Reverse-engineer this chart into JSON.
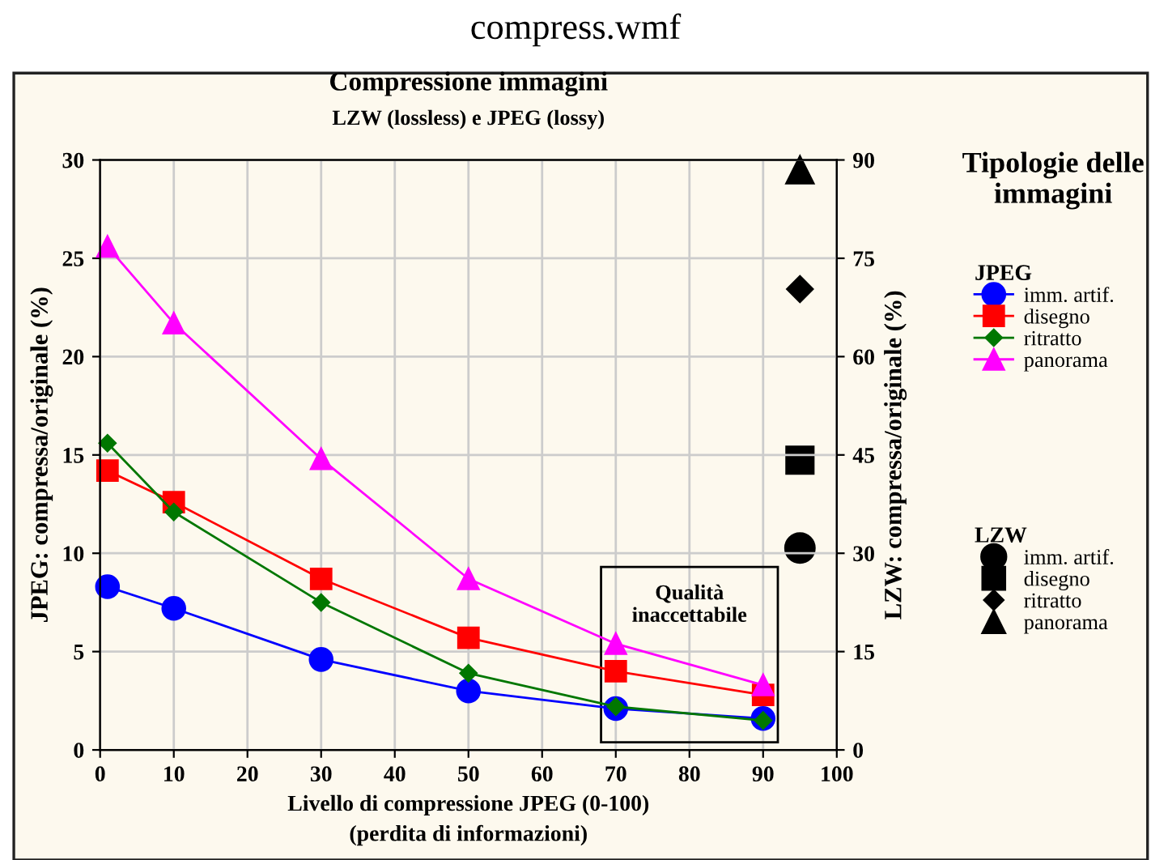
{
  "chart_data": {
    "type": "line",
    "title": "Compressione immagini",
    "subtitle": "LZW (lossless) e JPEG (lossy)",
    "xlabel": "Livello di compressione JPEG (0-100)\n(perdita di informazioni)",
    "ylabel": "JPEG: compressa/originale (%)",
    "y2label": "LZW: compressa/originale (%)",
    "legend_title": "Tipologie delle\nimmagini",
    "annotations": [
      "compress.wmf",
      "Qualità\ninaccettabile",
      "JPEG",
      "LZW"
    ],
    "xlim": [
      0,
      100
    ],
    "xticks": [
      0,
      10,
      20,
      30,
      40,
      50,
      60,
      70,
      80,
      90,
      100
    ],
    "ylim": [
      0,
      30
    ],
    "yticks": [
      0,
      5,
      10,
      15,
      20,
      25,
      30
    ],
    "y2lim": [
      0,
      90
    ],
    "y2ticks": [
      0,
      15,
      30,
      45,
      60,
      75,
      90
    ],
    "grid": true,
    "legend": "right",
    "line_style": "solid",
    "series": [
      {
        "name": "imm. artif.",
        "color": "#0000ff",
        "marker": "circle",
        "x": [
          1,
          10,
          30,
          50,
          70,
          90
        ],
        "values": [
          8.3,
          7.2,
          4.6,
          3.0,
          2.1,
          1.6
        ]
      },
      {
        "name": "disegno",
        "color": "#ff0000",
        "marker": "square",
        "x": [
          1,
          10,
          30,
          50,
          70,
          90
        ],
        "values": [
          14.2,
          12.6,
          8.7,
          5.7,
          4.0,
          2.8
        ]
      },
      {
        "name": "ritratto",
        "color": "#007700",
        "marker": "diamond",
        "x": [
          1,
          10,
          30,
          50,
          70,
          90
        ],
        "values": [
          15.6,
          12.1,
          7.5,
          3.9,
          2.2,
          1.5
        ]
      },
      {
        "name": "panorama",
        "color": "#ff00ff",
        "marker": "triangle",
        "x": [
          1,
          10,
          30,
          50,
          70,
          90
        ],
        "values": [
          25.6,
          21.7,
          14.8,
          8.7,
          5.4,
          3.3
        ]
      },
      {
        "name": "imm. artif.",
        "color": "#000000",
        "marker": "circle",
        "type": "scatter",
        "axis": "y2",
        "x": [
          95
        ],
        "values": [
          30.8
        ]
      },
      {
        "name": "disegno",
        "color": "#000000",
        "marker": "square",
        "type": "scatter",
        "axis": "y2",
        "x": [
          95
        ],
        "values": [
          44.2
        ]
      },
      {
        "name": "ritratto",
        "color": "#000000",
        "marker": "diamond",
        "type": "scatter",
        "axis": "y2",
        "x": [
          95
        ],
        "values": [
          70.3
        ]
      },
      {
        "name": "panorama",
        "color": "#000000",
        "marker": "triangle",
        "type": "scatter",
        "axis": "y2",
        "x": [
          95
        ],
        "values": [
          88.5
        ]
      }
    ]
  }
}
